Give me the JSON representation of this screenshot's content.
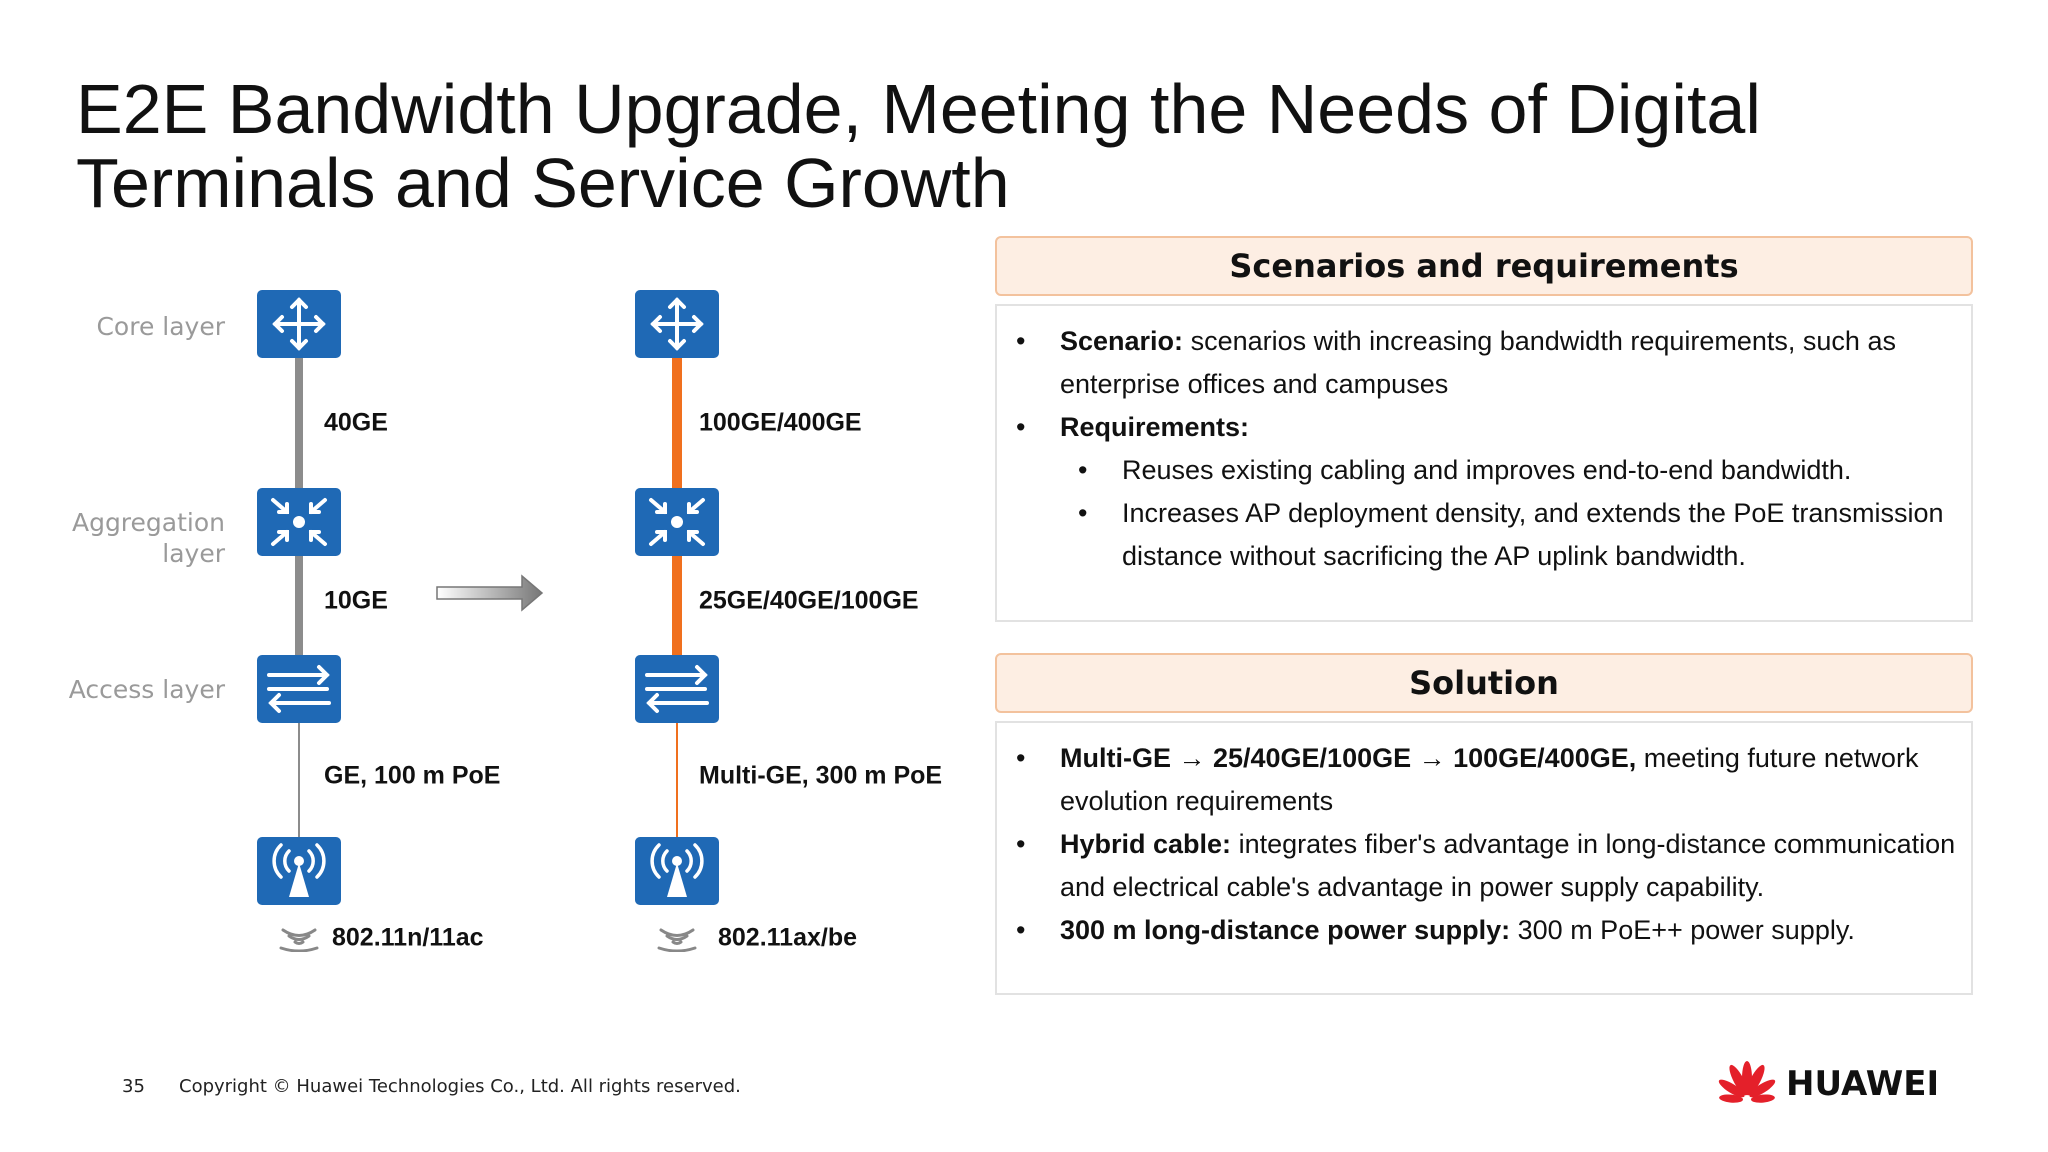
{
  "title": "E2E Bandwidth Upgrade, Meeting the Needs of Digital Terminals and Service Growth",
  "diagram": {
    "layers": [
      {
        "lines": [
          "Core layer"
        ]
      },
      {
        "lines": [
          "Aggregation",
          "layer"
        ]
      },
      {
        "lines": [
          "Access layer"
        ]
      }
    ],
    "before": {
      "links": [
        "40GE",
        "10GE",
        "GE, 100 m PoE"
      ],
      "wifi": "802.11n/11ac"
    },
    "after": {
      "links": [
        "100GE/400GE",
        "25GE/40GE/100GE",
        "Multi-GE, 300 m PoE"
      ],
      "wifi": "802.11ax/be"
    }
  },
  "scenarios": {
    "heading": "Scenarios and requirements",
    "items": [
      {
        "bold": "Scenario:",
        "text": "scenarios with increasing bandwidth requirements, such as enterprise offices and campuses"
      },
      {
        "bold": "Requirements:",
        "sub": [
          "Reuses existing cabling and improves end-to-end bandwidth.",
          "Increases AP deployment density, and extends the PoE transmission distance without sacrificing the AP uplink bandwidth."
        ]
      }
    ]
  },
  "solution": {
    "heading": "Solution",
    "items": [
      {
        "bold": "Multi-GE → 25/40GE/100GE → 100GE/400GE,",
        "text": "meeting future network evolution requirements"
      },
      {
        "bold": "Hybrid cable:",
        "text": "integrates fiber's advantage in long-distance communication and electrical cable's advantage in power supply capability."
      },
      {
        "bold": "300 m long-distance power supply:",
        "text": "300 m PoE++ power supply."
      }
    ]
  },
  "footer": {
    "page": "35",
    "copyright": "Copyright © Huawei Technologies Co., Ltd. All rights reserved.",
    "brand": "HUAWEI"
  }
}
